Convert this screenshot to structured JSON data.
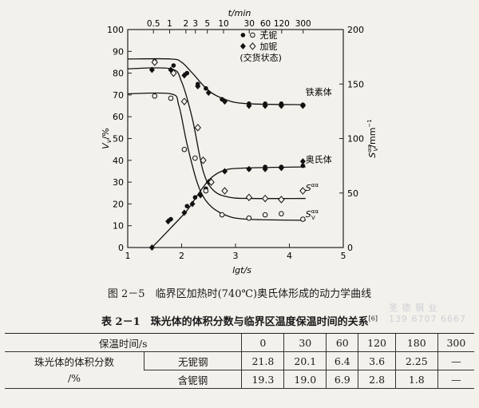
{
  "chart_data": {
    "type": "line",
    "xlabel": "lgt/s",
    "x2label": "t/min",
    "ylabel": "V",
    "ylabel_sub": "v",
    "ylabel_unit": "/%",
    "y2label": "S",
    "y2label_sup": "αα",
    "y2label_sub": "V",
    "y2label_unit": "/mm",
    "y2label_unit_sup": "−1",
    "xlim": [
      1,
      5
    ],
    "ylim": [
      0,
      100
    ],
    "y2lim": [
      0,
      200
    ],
    "xticks": [
      1,
      2,
      3,
      4,
      5
    ],
    "yticks": [
      0,
      10,
      20,
      30,
      40,
      50,
      60,
      70,
      80,
      90,
      100
    ],
    "y2ticks": [
      0,
      50,
      100,
      150,
      200
    ],
    "top_ticks": [
      {
        "label": "0.5",
        "lgt": 1.477
      },
      {
        "label": "1",
        "lgt": 1.778
      },
      {
        "label": "2",
        "lgt": 2.079
      },
      {
        "label": "3",
        "lgt": 2.255
      },
      {
        "label": "5",
        "lgt": 2.477
      },
      {
        "label": "10",
        "lgt": 2.778
      },
      {
        "label": "30",
        "lgt": 3.255
      },
      {
        "label": "60",
        "lgt": 3.556
      },
      {
        "label": "120",
        "lgt": 3.857
      },
      {
        "label": "300",
        "lgt": 4.255
      }
    ],
    "legend": [
      {
        "marker": "● ○",
        "label": "无铌"
      },
      {
        "marker": "◆ ◇",
        "label": "加铌"
      },
      {
        "marker": "",
        "label": "(交货状态)"
      }
    ],
    "annotations": [
      {
        "text": "铁素体",
        "x": 4.3,
        "y": 70
      },
      {
        "text": "奥氏体",
        "x": 4.3,
        "y": 39
      },
      {
        "text": "S",
        "sup": "αα",
        "sub": "",
        "x": 4.3,
        "y": 26
      },
      {
        "text": "S",
        "sup": "αα",
        "sub": "V",
        "x": 4.3,
        "y": 14
      }
    ],
    "series": [
      {
        "name": "铁素体 (Vv)",
        "axis": "left",
        "curve": [
          [
            1.0,
            86.5
          ],
          [
            1.8,
            86.5
          ],
          [
            2.0,
            85
          ],
          [
            2.2,
            80
          ],
          [
            2.5,
            72
          ],
          [
            2.8,
            68
          ],
          [
            3.2,
            66
          ],
          [
            4.3,
            65.5
          ]
        ],
        "points_filled_circle": [
          [
            1.5,
            85.5
          ],
          [
            1.85,
            83.5
          ],
          [
            2.1,
            80
          ],
          [
            2.3,
            75
          ],
          [
            2.45,
            73
          ],
          [
            2.75,
            68
          ],
          [
            3.25,
            66
          ],
          [
            3.55,
            66
          ],
          [
            3.85,
            66
          ],
          [
            4.25,
            65.5
          ]
        ],
        "points_filled_diamond": [
          [
            1.45,
            81.5
          ],
          [
            1.8,
            81.5
          ],
          [
            2.05,
            79
          ],
          [
            2.3,
            74
          ],
          [
            2.5,
            71
          ],
          [
            2.8,
            67
          ],
          [
            3.25,
            65
          ],
          [
            3.55,
            65
          ],
          [
            3.85,
            65
          ],
          [
            4.25,
            65
          ]
        ]
      },
      {
        "name": "奥氏体 (Vv)",
        "axis": "left",
        "curve": [
          [
            1.45,
            0
          ],
          [
            1.8,
            9
          ],
          [
            2.1,
            17
          ],
          [
            2.35,
            26
          ],
          [
            2.55,
            32
          ],
          [
            2.8,
            35.5
          ],
          [
            3.2,
            36.5
          ],
          [
            4.3,
            37
          ]
        ],
        "points_filled_circle": [
          [
            1.8,
            13
          ],
          [
            2.1,
            19
          ],
          [
            2.25,
            23
          ],
          [
            2.45,
            27
          ],
          [
            2.8,
            35
          ],
          [
            3.25,
            36
          ],
          [
            3.55,
            37
          ],
          [
            3.85,
            37
          ],
          [
            4.25,
            37.5
          ]
        ],
        "points_filled_diamond": [
          [
            1.45,
            0
          ],
          [
            1.75,
            12
          ],
          [
            2.05,
            16
          ],
          [
            2.2,
            20
          ],
          [
            2.35,
            24
          ],
          [
            2.5,
            30
          ],
          [
            2.8,
            35
          ],
          [
            3.25,
            36
          ],
          [
            3.55,
            36
          ],
          [
            3.85,
            36.5
          ],
          [
            4.25,
            39.5
          ]
        ]
      },
      {
        "name": "S^αα (加铌)",
        "axis": "right",
        "curve": [
          [
            1.0,
            164
          ],
          [
            1.8,
            164
          ],
          [
            2.0,
            152
          ],
          [
            2.2,
            118
          ],
          [
            2.4,
            70
          ],
          [
            2.6,
            52
          ],
          [
            2.9,
            46
          ],
          [
            3.3,
            45
          ],
          [
            4.3,
            45
          ]
        ],
        "points_open_diamond": [
          [
            1.5,
            170
          ],
          [
            1.85,
            160
          ],
          [
            2.05,
            134
          ],
          [
            2.3,
            110
          ],
          [
            2.4,
            80
          ],
          [
            2.55,
            60
          ],
          [
            2.8,
            52
          ],
          [
            3.25,
            46
          ],
          [
            3.55,
            45
          ],
          [
            3.85,
            44
          ],
          [
            4.25,
            52
          ]
        ]
      },
      {
        "name": "S_V^αα (无铌)",
        "axis": "right",
        "curve": [
          [
            1.0,
            141
          ],
          [
            1.8,
            141
          ],
          [
            1.95,
            130
          ],
          [
            2.1,
            95
          ],
          [
            2.3,
            58
          ],
          [
            2.5,
            40
          ],
          [
            2.8,
            30
          ],
          [
            3.2,
            26
          ],
          [
            4.3,
            25
          ]
        ],
        "points_open_circle": [
          [
            1.5,
            139
          ],
          [
            1.8,
            137
          ],
          [
            2.05,
            90
          ],
          [
            2.25,
            82
          ],
          [
            2.45,
            52
          ],
          [
            2.75,
            30
          ],
          [
            3.25,
            27
          ],
          [
            3.55,
            30
          ],
          [
            3.85,
            31
          ],
          [
            4.25,
            26
          ]
        ]
      }
    ]
  },
  "figure_caption": "图 2－5　临界区加热时(740℃)奥氏体形成的动力学曲线",
  "table": {
    "title": "表 2－1　珠光体的体积分数与临界区温度保温时间的关系",
    "title_ref": "[6]",
    "header_label": "保温时间/s",
    "times": [
      "0",
      "30",
      "60",
      "120",
      "180",
      "300"
    ],
    "row_group_label_1": "珠光体的体积分数",
    "row_group_label_2": "/%",
    "rows": [
      {
        "label": "无铌钢",
        "values": [
          "21.8",
          "20.1",
          "6.4",
          "3.6",
          "2.25",
          "—"
        ]
      },
      {
        "label": "含铌钢",
        "values": [
          "19.3",
          "19.0",
          "6.9",
          "2.8",
          "1.8",
          "—"
        ]
      }
    ]
  },
  "watermark": {
    "line1": "圣 德 钢 业",
    "line2": "139 6707 6667"
  }
}
